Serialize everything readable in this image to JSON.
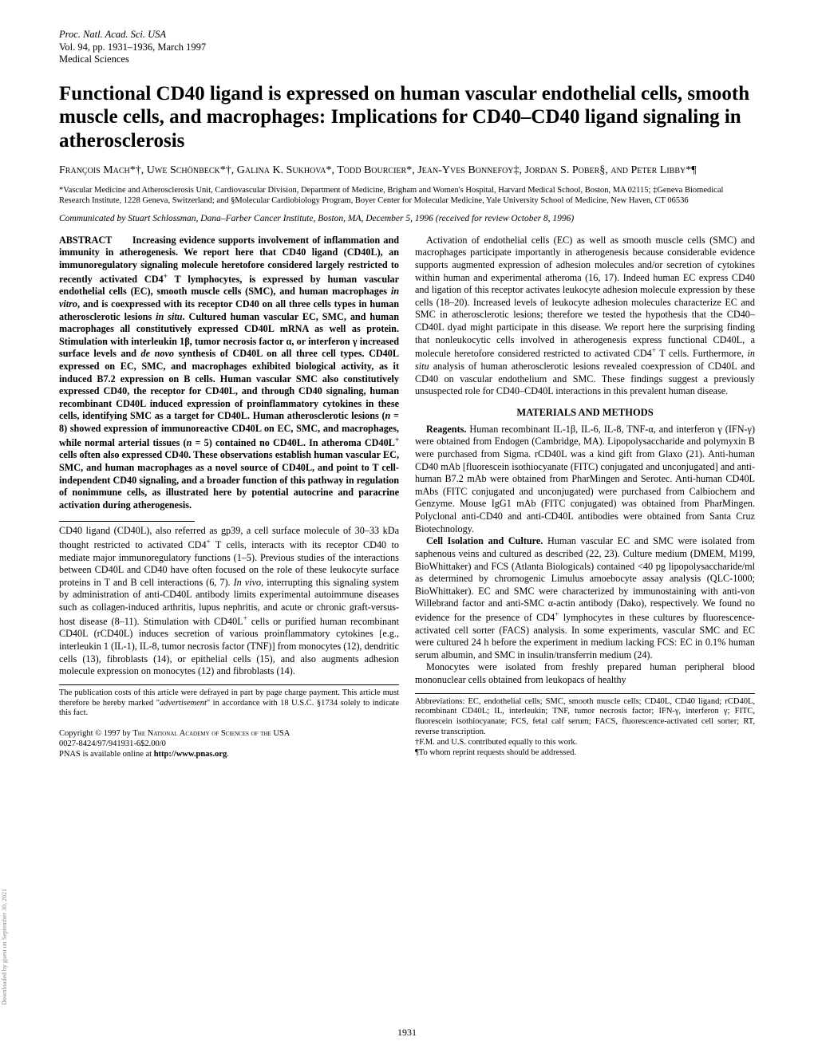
{
  "journal": {
    "line1": "Proc. Natl. Acad. Sci. USA",
    "line2": "Vol. 94, pp. 1931–1936, March 1997",
    "line3": "Medical Sciences"
  },
  "title": "Functional CD40 ligand is expressed on human vascular endothelial cells, smooth muscle cells, and macrophages: Implications for CD40–CD40 ligand signaling in atherosclerosis",
  "authors_html": "F<span class='sc'>rançois</span> M<span class='sc'>ach</span>*†, U<span class='sc'>we</span> S<span class='sc'>chönbeck</span>*†, G<span class='sc'>alina</span> K. S<span class='sc'>ukhova</span>*, T<span class='sc'>odd</span> B<span class='sc'>ourcier</span>*, J<span class='sc'>ean</span>-Y<span class='sc'>ves</span> B<span class='sc'>onnefoy</span>‡, J<span class='sc'>ordan</span> S. P<span class='sc'>ober</span>§, <span class='sc'>and</span> P<span class='sc'>eter</span> L<span class='sc'>ibby</span>*¶",
  "affiliations": "*Vascular Medicine and Atherosclerosis Unit, Cardiovascular Division, Department of Medicine, Brigham and Women's Hospital, Harvard Medical School, Boston, MA 02115; ‡Geneva Biomedical Research Institute, 1228 Geneva, Switzerland; and §Molecular Cardiobiology Program, Boyer Center for Molecular Medicine, Yale University School of Medicine, New Haven, CT 06536",
  "communicated": "Communicated by Stuart Schlossman, Dana–Farber Cancer Institute, Boston, MA, December 5, 1996 (received for review October 8, 1996)",
  "abstract_label": "ABSTRACT",
  "abstract_body_html": "Increasing evidence supports involvement of inflammation and immunity in atherogenesis. We report here that CD40 ligand (CD40L), an immunoregulatory signaling molecule heretofore considered largely restricted to recently activated CD4<sup>+</sup> T lymphocytes, is expressed by human vascular endothelial cells (EC), smooth muscle cells (SMC), and human macrophages <i>in vitro</i>, and is coexpressed with its receptor CD40 on all three cells types in human atherosclerotic lesions <i>in situ</i>. Cultured human vascular EC, SMC, and human macrophages all constitutively expressed CD40L mRNA as well as protein. Stimulation with interleukin 1β, tumor necrosis factor α, or interferon γ increased surface levels and <i>de novo</i> synthesis of CD40L on all three cell types. CD40L expressed on EC, SMC, and macrophages exhibited biological activity, as it induced B7.2 expression on B cells. Human vascular SMC also constitutively expressed CD40, the receptor for CD40L, and through CD40 signaling, human recombinant CD40L induced expression of proinflammatory cytokines in these cells, identifying SMC as a target for CD40L. Human atherosclerotic lesions (<i>n</i> = 8) showed expression of immunoreactive CD40L on EC, SMC, and macrophages, while normal arterial tissues (<i>n</i> = 5) contained no CD40L. In atheroma CD40L<sup>+</sup> cells often also expressed CD40. These observations establish human vascular EC, SMC, and human macrophages as a novel source of CD40L, and point to T cell-independent CD40 signaling, and a broader function of this pathway in regulation of nonimmune cells, as illustrated here by potential autocrine and paracrine activation during atherogenesis.",
  "left_para1_html": "CD40 ligand (CD40L), also referred as gp39, a cell surface molecule of 30–33 kDa thought restricted to activated CD4<sup>+</sup> T cells, interacts with its receptor CD40 to mediate major immunoregulatory functions (1–5). Previous studies of the interactions between CD40L and CD40 have often focused on the role of these leukocyte surface proteins in T and B cell interactions (6, 7). <i>In vivo</i>, interrupting this signaling system by administration of anti-CD40L antibody limits experimental autoimmune diseases such as collagen-induced arthritis, lupus nephritis, and acute or chronic graft-versus-host disease (8–11). Stimulation with CD40L<sup>+</sup> cells or purified human recombinant CD40L (rCD40L) induces secretion of various proinflammatory cytokines [e.g., interleukin 1 (IL-1), IL-8, tumor necrosis factor (TNF)] from monocytes (12), dendritic cells (13), fibroblasts (14), or epithelial cells (15), and also augments adhesion molecule expression on monocytes (12) and fibroblasts (14).",
  "left_footnote_html": "The publication costs of this article were defrayed in part by page charge payment. This article must therefore be hereby marked \"<i>advertisement</i>\" in accordance with 18 U.S.C. §1734 solely to indicate this fact.<br><br>Copyright © 1997 by T<span class='sc'>he</span> N<span class='sc'>ational</span> A<span class='sc'>cademy of</span> S<span class='sc'>ciences of the</span> USA<br>0027-8424/97/941931-6$2.00/0<br>PNAS is available online at <b>http://www.pnas.org</b>.",
  "right_para1_html": "Activation of endothelial cells (EC) as well as smooth muscle cells (SMC) and macrophages participate importantly in atherogenesis because considerable evidence supports augmented expression of adhesion molecules and/or secretion of cytokines within human and experimental atheroma (16, 17). Indeed human EC express CD40 and ligation of this receptor activates leukocyte adhesion molecule expression by these cells (18–20). Increased levels of leukocyte adhesion molecules characterize EC and SMC in atherosclerotic lesions; therefore we tested the hypothesis that the CD40–CD40L dyad might participate in this disease. We report here the surprising finding that nonleukocytic cells involved in atherogenesis express functional CD40L, a molecule heretofore considered restricted to activated CD4<sup>+</sup> T cells. Furthermore, <i>in situ</i> analysis of human atherosclerotic lesions revealed coexpression of CD40L and CD40 on vascular endothelium and SMC. These findings suggest a previously unsuspected role for CD40–CD40L interactions in this prevalent human disease.",
  "section_heading": "MATERIALS AND METHODS",
  "right_para2_html": "<b>Reagents.</b> Human recombinant IL-1β, IL-6, IL-8, TNF-α, and interferon γ (IFN-γ) were obtained from Endogen (Cambridge, MA). Lipopolysaccharide and polymyxin B were purchased from Sigma. rCD40L was a kind gift from Glaxo (21). Anti-human CD40 mAb [fluorescein isothiocyanate (FITC) conjugated and unconjugated] and anti-human B7.2 mAb were obtained from PharMingen and Serotec. Anti-human CD40L mAbs (FITC conjugated and unconjugated) were purchased from Calbiochem and Genzyme. Mouse IgG1 mAb (FITC conjugated) was obtained from PharMingen. Polyclonal anti-CD40 and anti-CD40L antibodies were obtained from Santa Cruz Biotechnology.",
  "right_para3_html": "<b>Cell Isolation and Culture.</b> Human vascular EC and SMC were isolated from saphenous veins and cultured as described (22, 23). Culture medium (DMEM, M199, BioWhittaker) and FCS (Atlanta Biologicals) contained <40 pg lipopolysaccharide/ml as determined by chromogenic Limulus amoebocyte assay analysis (QLC-1000; BioWhittaker). EC and SMC were characterized by immunostaining with anti-von Willebrand factor and anti-SMC α-actin antibody (Dako), respectively. We found no evidence for the presence of CD4<sup>+</sup> lymphocytes in these cultures by fluorescence-activated cell sorter (FACS) analysis. In some experiments, vascular SMC and EC were cultured 24 h before the experiment in medium lacking FCS: EC in 0.1% human serum albumin, and SMC in insulin/transferrin medium (24).",
  "right_para4_html": "Monocytes were isolated from freshly prepared human peripheral blood mononuclear cells obtained from leukopacs of healthy",
  "right_footnote_html": "Abbreviations: EC, endothelial cells; SMC, smooth muscle cells; CD40L, CD40 ligand; rCD40L, recombinant CD40L; IL, interleukin; TNF, tumor necrosis factor; IFN-γ, interferon γ; FITC, fluorescein isothiocyanate; FCS, fetal calf serum; FACS, fluorescence-activated cell sorter; RT, reverse transcription.<br>†F.M. and U.S. contributed equally to this work.<br>¶To whom reprint requests should be addressed.",
  "page_number": "1931",
  "sidetext": "Downloaded by guest on September 30, 2021"
}
